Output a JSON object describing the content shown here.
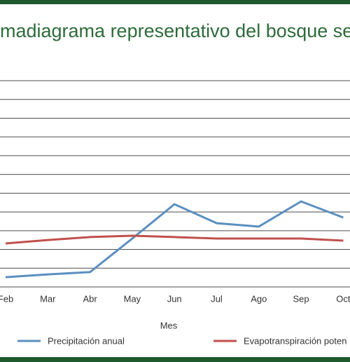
{
  "chart_data": {
    "type": "line",
    "title": "madiagrama representativo del bosque se",
    "x_label": "Mes",
    "categories": [
      "Feb",
      "Mar",
      "Abr",
      "May",
      "Jun",
      "Jul",
      "Ago",
      "Sep",
      "Oct"
    ],
    "series": [
      {
        "name": "Precipitación anual",
        "color": "#5b8fc0",
        "values": [
          0.52,
          0.67,
          0.79,
          2.58,
          4.41,
          3.4,
          3.22,
          4.56,
          3.7
        ]
      },
      {
        "name": "Evapotranspiración poten",
        "color": "#c0504d",
        "values": [
          2.32,
          2.5,
          2.66,
          2.73,
          2.66,
          2.58,
          2.58,
          2.58,
          2.47
        ]
      }
    ],
    "ylim": [
      0,
      11
    ],
    "yticks": [
      0,
      1,
      2,
      3,
      4,
      5,
      6,
      7,
      8,
      9,
      10,
      11
    ],
    "grid": true
  }
}
